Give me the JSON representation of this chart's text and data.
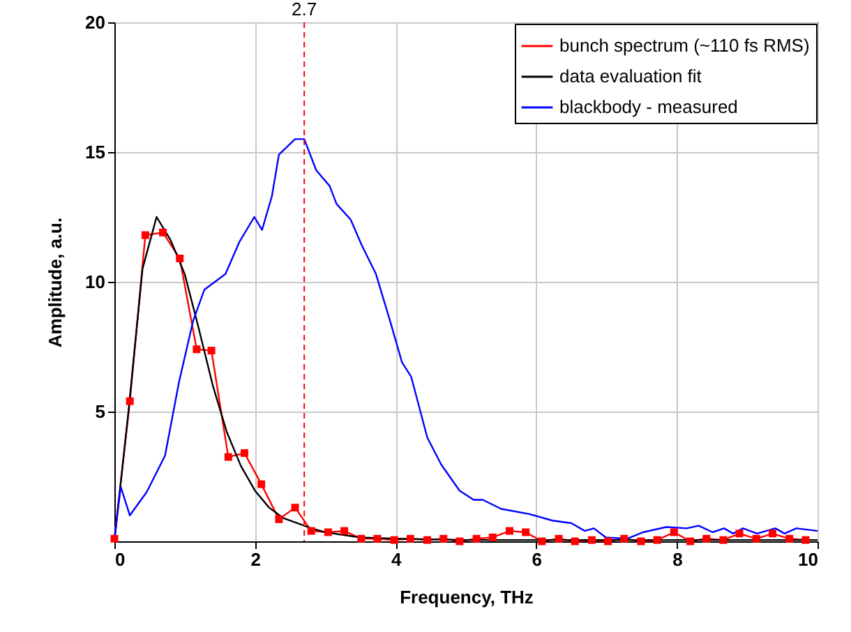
{
  "chart_data": {
    "type": "line",
    "xlabel": "Frequency, THz",
    "ylabel": "Amplitude, a.u.",
    "xlim": [
      0,
      10
    ],
    "xticks": [
      0,
      2,
      4,
      6,
      8,
      10
    ],
    "ylim": [
      0,
      20
    ],
    "yticks": [
      5,
      10,
      15,
      20
    ],
    "grid": true,
    "legend": "top right",
    "ref_lines": [
      {
        "axis": "x",
        "value": 2.7,
        "label": "2.7",
        "color": "#ff0000",
        "line_style": "dashed"
      }
    ],
    "series": [
      {
        "name": "bunch spectrum (~110 fs RMS)",
        "color": "#ff0000",
        "marker": "square",
        "x": [
          0,
          0.22,
          0.44,
          0.69,
          0.93,
          1.17,
          1.38,
          1.62,
          1.85,
          2.09,
          2.34,
          2.57,
          2.8,
          3.04,
          3.27,
          3.51,
          3.74,
          3.98,
          4.21,
          4.45,
          4.68,
          4.91,
          5.15,
          5.38,
          5.62,
          5.85,
          6.08,
          6.32,
          6.55,
          6.79,
          7.02,
          7.25,
          7.49,
          7.72,
          7.96,
          8.19,
          8.42,
          8.66,
          8.89,
          9.13,
          9.36,
          9.6,
          9.83
        ],
        "values": [
          0.1,
          5.4,
          11.8,
          11.9,
          10.9,
          7.4,
          7.35,
          3.25,
          3.4,
          2.2,
          0.85,
          1.3,
          0.4,
          0.35,
          0.4,
          0.1,
          0.1,
          0.05,
          0.1,
          0.05,
          0.1,
          0.0,
          0.1,
          0.15,
          0.4,
          0.35,
          0.0,
          0.1,
          0.0,
          0.05,
          0.0,
          0.1,
          0.0,
          0.05,
          0.35,
          0.0,
          0.1,
          0.05,
          0.3,
          0.1,
          0.3,
          0.1,
          0.05
        ]
      },
      {
        "name": "data evaluation fit",
        "color": "#000000",
        "x": [
          0,
          0.2,
          0.4,
          0.6,
          0.8,
          1.0,
          1.2,
          1.4,
          1.6,
          1.8,
          2.0,
          2.2,
          2.4,
          2.6,
          2.8,
          3.0,
          3.5,
          4.0,
          5.0,
          10.0
        ],
        "values": [
          0,
          5,
          10.5,
          12.5,
          11.6,
          10.3,
          8.2,
          6.0,
          4.2,
          2.9,
          1.95,
          1.3,
          0.9,
          0.7,
          0.5,
          0.35,
          0.15,
          0.1,
          0.05,
          0.05
        ]
      },
      {
        "name": "blackbody - measured",
        "color": "#0000ff",
        "x": [
          0,
          0.09,
          0.22,
          0.46,
          0.72,
          0.92,
          1.12,
          1.28,
          1.58,
          1.78,
          1.99,
          2.1,
          2.24,
          2.34,
          2.57,
          2.7,
          2.87,
          3.06,
          3.16,
          3.36,
          3.52,
          3.72,
          3.92,
          4.09,
          4.22,
          4.45,
          4.65,
          4.91,
          5.11,
          5.24,
          5.5,
          5.9,
          6.23,
          6.5,
          6.69,
          6.82,
          6.99,
          7.29,
          7.52,
          7.85,
          8.14,
          8.31,
          8.51,
          8.67,
          8.8,
          8.94,
          9.14,
          9.4,
          9.53,
          9.7,
          10.0
        ],
        "values": [
          0.1,
          2.1,
          1.0,
          1.9,
          3.3,
          6.15,
          8.5,
          9.7,
          10.3,
          11.55,
          12.5,
          12.0,
          13.3,
          14.9,
          15.5,
          15.5,
          14.3,
          13.7,
          13.0,
          12.4,
          11.4,
          10.3,
          8.5,
          6.9,
          6.35,
          4.0,
          2.95,
          1.95,
          1.6,
          1.6,
          1.25,
          1.05,
          0.8,
          0.7,
          0.4,
          0.5,
          0.15,
          0.1,
          0.35,
          0.55,
          0.5,
          0.6,
          0.35,
          0.5,
          0.3,
          0.5,
          0.3,
          0.5,
          0.3,
          0.5,
          0.4
        ]
      }
    ]
  }
}
